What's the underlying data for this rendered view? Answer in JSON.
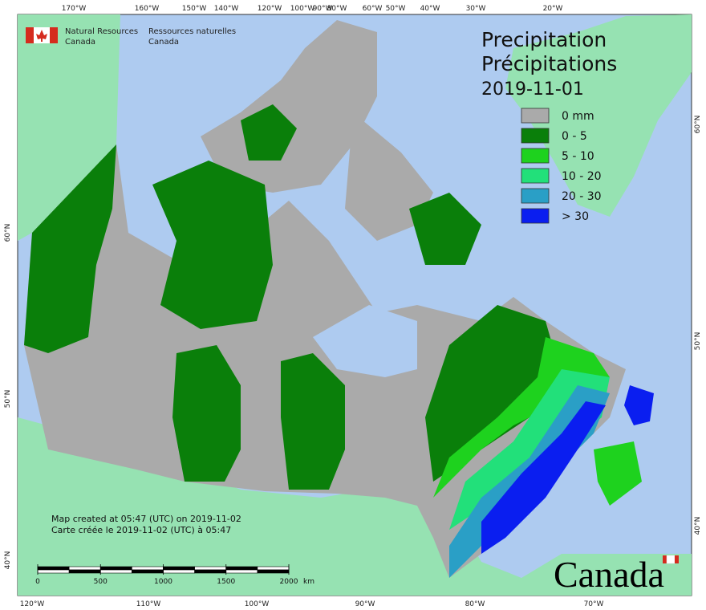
{
  "header": {
    "org_en": "Natural Resources",
    "org_en_2": "Canada",
    "org_fr": "Ressources naturelles",
    "org_fr_2": "Canada"
  },
  "title": {
    "en": "Precipitation",
    "fr": "Précipitations",
    "date": "2019-11-01"
  },
  "legend": [
    {
      "label": "0 mm",
      "color": "#aaaaaa"
    },
    {
      "label": "0 - 5",
      "color": "#0a7f0a"
    },
    {
      "label": "5 - 10",
      "color": "#1ed21e"
    },
    {
      "label": "10 - 20",
      "color": "#22e07a"
    },
    {
      "label": "20 - 30",
      "color": "#2a9fc6"
    },
    {
      "label": "> 30",
      "color": "#0a1ef0"
    }
  ],
  "top_labels": [
    "170°W",
    "160°W",
    "150°W",
    "140°W",
    "120°W",
    "100°W",
    "90°W",
    "80°W",
    "60°W",
    "50°W",
    "40°W",
    "30°W",
    "20°W"
  ],
  "bottom_labels": [
    "120°W",
    "110°W",
    "100°W",
    "90°W",
    "80°W",
    "70°W"
  ],
  "left_labels": [
    "60°N",
    "50°N",
    "40°N"
  ],
  "right_labels": [
    "60°N",
    "50°N",
    "40°N"
  ],
  "footer": {
    "line_1": "Map created at 05:47 (UTC) on 2019-11-02",
    "line_2": "Carte créée le 2019-11-02 (UTC) à 05:47"
  },
  "scale": {
    "ticks": [
      0,
      500,
      1000,
      1500,
      2000
    ],
    "unit": "km"
  },
  "wordmark": "Canada"
}
